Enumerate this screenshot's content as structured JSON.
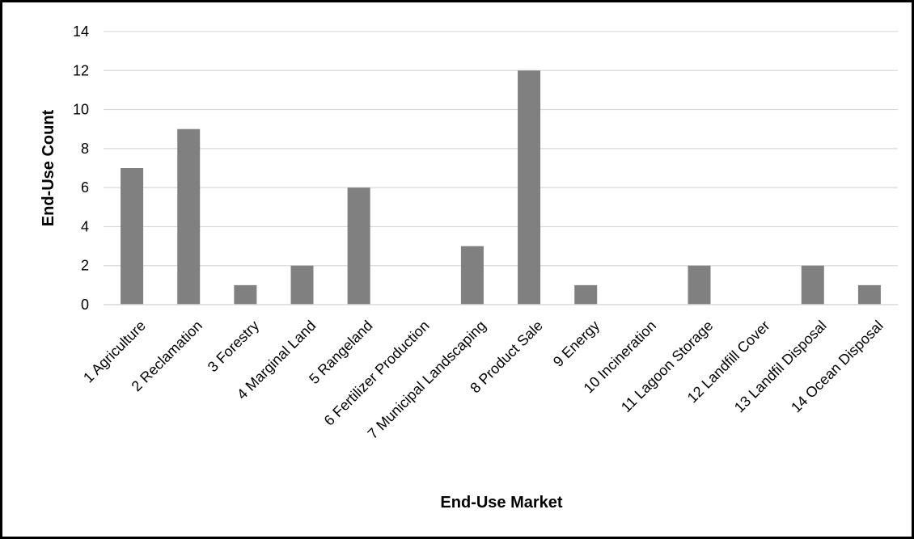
{
  "chart_data": {
    "type": "bar",
    "title": "",
    "xlabel": "End-Use Market",
    "ylabel": "End-Use Count",
    "categories": [
      "1 Agriculture",
      "2 Reclamation",
      "3 Forestry",
      "4 Marginal Land",
      "5 Rangeland",
      "6 Fertilizer Production",
      "7 Municipal Landscaping",
      "8 Product Sale",
      "9 Energy",
      "10 Incineration",
      "11 Lagoon Storage",
      "12 Landfill Cover",
      "13 Landfil Disposal",
      "14 Ocean Disposal"
    ],
    "values": [
      7,
      9,
      1,
      2,
      6,
      0,
      3,
      12,
      1,
      0,
      2,
      0,
      2,
      1
    ],
    "ylim": [
      0,
      14
    ],
    "yticks": [
      "0",
      "2",
      "4",
      "6",
      "8",
      "10",
      "12",
      "14"
    ],
    "grid": true,
    "legend": "none",
    "bar_color": "#808080",
    "grid_color": "#d9d9d9"
  }
}
